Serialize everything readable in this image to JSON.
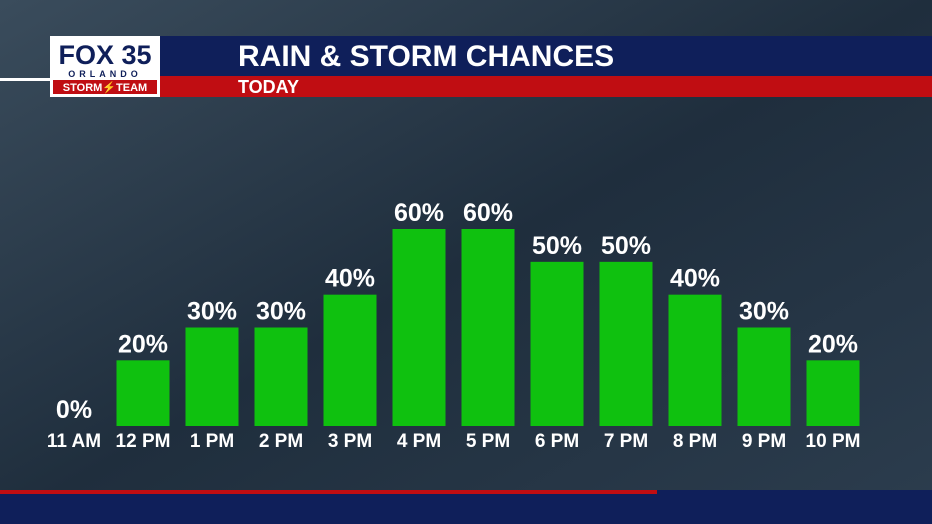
{
  "logo": {
    "brand": "FOX 35",
    "city": "ORLANDO",
    "team": "STORM⚡TEAM"
  },
  "chart_data": {
    "type": "bar",
    "title": "RAIN & STORM CHANCES",
    "subtitle": "TODAY",
    "categories": [
      "11 AM",
      "12 PM",
      "1 PM",
      "2 PM",
      "3 PM",
      "4 PM",
      "5 PM",
      "6 PM",
      "7 PM",
      "8 PM",
      "9 PM",
      "10 PM"
    ],
    "values": [
      0,
      20,
      30,
      30,
      40,
      60,
      60,
      50,
      50,
      40,
      30,
      20
    ],
    "value_labels": [
      "0%",
      "20%",
      "30%",
      "30%",
      "40%",
      "60%",
      "60%",
      "50%",
      "50%",
      "40%",
      "30%",
      "20%"
    ],
    "color": "#0fc10f"
  }
}
